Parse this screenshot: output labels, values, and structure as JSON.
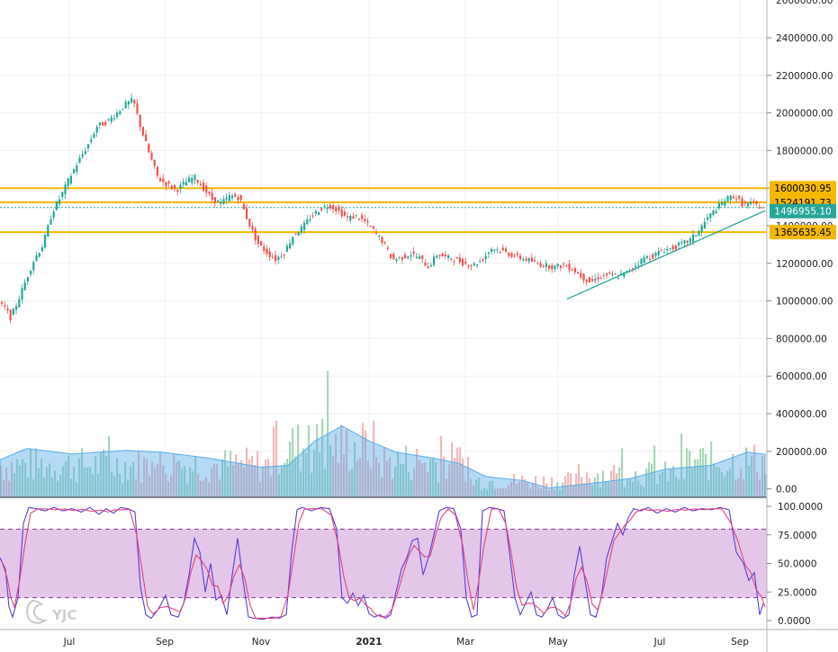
{
  "chart_data": [
    {
      "type": "candlestick",
      "name": "",
      "y_axis_ticks": [
        "2400000.00",
        "2200000.00",
        "2000000.00",
        "1800000.00",
        "1600000.00",
        "1400000.00",
        "1200000.00",
        "1000000.00",
        "800000.00",
        "600000.00",
        "400000.00",
        "200000.00",
        "0.00"
      ],
      "y_axis_partial_top": "2600000.00",
      "ylim": [
        0,
        2650000
      ],
      "x_axis_ticks": [
        "Jul",
        "Sep",
        "Nov",
        "2021",
        "Mar",
        "May",
        "Jul",
        "Sep"
      ],
      "price_path_approx": [
        [
          0,
          990000
        ],
        [
          8,
          960000
        ],
        [
          14,
          910000
        ],
        [
          22,
          1000000
        ],
        [
          30,
          1100000
        ],
        [
          40,
          1220000
        ],
        [
          50,
          1300000
        ],
        [
          60,
          1470000
        ],
        [
          70,
          1560000
        ],
        [
          80,
          1660000
        ],
        [
          90,
          1750000
        ],
        [
          100,
          1830000
        ],
        [
          110,
          1930000
        ],
        [
          120,
          1950000
        ],
        [
          130,
          1990000
        ],
        [
          140,
          2040000
        ],
        [
          150,
          2070000
        ],
        [
          158,
          1930000
        ],
        [
          168,
          1780000
        ],
        [
          178,
          1650000
        ],
        [
          188,
          1620000
        ],
        [
          198,
          1590000
        ],
        [
          208,
          1630000
        ],
        [
          218,
          1660000
        ],
        [
          228,
          1600000
        ],
        [
          238,
          1540000
        ],
        [
          248,
          1520000
        ],
        [
          258,
          1560000
        ],
        [
          268,
          1550000
        ],
        [
          278,
          1420000
        ],
        [
          288,
          1310000
        ],
        [
          298,
          1260000
        ],
        [
          308,
          1220000
        ],
        [
          318,
          1260000
        ],
        [
          328,
          1350000
        ],
        [
          338,
          1390000
        ],
        [
          348,
          1450000
        ],
        [
          358,
          1490000
        ],
        [
          368,
          1510000
        ],
        [
          378,
          1480000
        ],
        [
          388,
          1440000
        ],
        [
          398,
          1450000
        ],
        [
          408,
          1420000
        ],
        [
          418,
          1370000
        ],
        [
          428,
          1310000
        ],
        [
          438,
          1220000
        ],
        [
          448,
          1230000
        ],
        [
          458,
          1250000
        ],
        [
          468,
          1230000
        ],
        [
          478,
          1180000
        ],
        [
          488,
          1250000
        ],
        [
          498,
          1230000
        ],
        [
          508,
          1220000
        ],
        [
          518,
          1200000
        ],
        [
          528,
          1190000
        ],
        [
          538,
          1220000
        ],
        [
          548,
          1280000
        ],
        [
          558,
          1270000
        ],
        [
          568,
          1250000
        ],
        [
          578,
          1230000
        ],
        [
          588,
          1220000
        ],
        [
          598,
          1200000
        ],
        [
          608,
          1190000
        ],
        [
          618,
          1180000
        ],
        [
          628,
          1190000
        ],
        [
          638,
          1170000
        ],
        [
          648,
          1130000
        ],
        [
          658,
          1100000
        ],
        [
          668,
          1130000
        ],
        [
          678,
          1140000
        ],
        [
          688,
          1130000
        ],
        [
          698,
          1150000
        ],
        [
          708,
          1190000
        ],
        [
          718,
          1230000
        ],
        [
          728,
          1240000
        ],
        [
          738,
          1270000
        ],
        [
          748,
          1280000
        ],
        [
          758,
          1300000
        ],
        [
          768,
          1320000
        ],
        [
          778,
          1370000
        ],
        [
          788,
          1440000
        ],
        [
          798,
          1490000
        ],
        [
          808,
          1540000
        ],
        [
          818,
          1560000
        ],
        [
          828,
          1510000
        ],
        [
          838,
          1520000
        ],
        [
          848,
          1497000
        ]
      ],
      "horizontal_levels": [
        {
          "value": 1600030.95,
          "label": "1600030.95",
          "color": "#f5b800"
        },
        {
          "value": 1524191.73,
          "label": "1524191.73",
          "color": "#f5b800"
        },
        {
          "value": 1365635.45,
          "label": "1365635.45",
          "color": "#f5b800"
        }
      ],
      "last_price": {
        "value": 1496955.1,
        "label": "1496955.10",
        "color": "#26a69a"
      },
      "trendline": {
        "from_date": "May",
        "from_value": 1010000,
        "to_date": "Sep",
        "to_value": 1480000,
        "color": "#26a69a"
      },
      "volume": {
        "up_color": "#a8d8b9",
        "down_color": "#f2b8b8",
        "ma_color": "#5aaee8"
      },
      "colors": {
        "up": "#26a69a",
        "down": "#ef5350"
      }
    },
    {
      "type": "line",
      "name": "stochastic",
      "y_axis_ticks": [
        "100.0000",
        "75.0000",
        "50.0000",
        "25.0000",
        "0.0000"
      ],
      "ylim": [
        -3,
        103
      ],
      "band": [
        20,
        80
      ],
      "band_color": "#d9b3e0",
      "series": [
        {
          "name": "",
          "color": "#5b3fd6"
        },
        {
          "name": "",
          "color": "#e0457b"
        }
      ],
      "k_path_approx": [
        [
          0,
          55
        ],
        [
          6,
          45
        ],
        [
          10,
          12
        ],
        [
          14,
          3
        ],
        [
          20,
          20
        ],
        [
          26,
          85
        ],
        [
          32,
          99
        ],
        [
          40,
          98
        ],
        [
          50,
          96
        ],
        [
          60,
          99
        ],
        [
          70,
          96
        ],
        [
          80,
          98
        ],
        [
          90,
          95
        ],
        [
          100,
          99
        ],
        [
          110,
          93
        ],
        [
          118,
          98
        ],
        [
          126,
          94
        ],
        [
          134,
          99
        ],
        [
          142,
          98
        ],
        [
          150,
          95
        ],
        [
          156,
          30
        ],
        [
          162,
          5
        ],
        [
          168,
          2
        ],
        [
          176,
          10
        ],
        [
          184,
          22
        ],
        [
          190,
          5
        ],
        [
          198,
          3
        ],
        [
          204,
          15
        ],
        [
          210,
          40
        ],
        [
          216,
          72
        ],
        [
          222,
          60
        ],
        [
          228,
          25
        ],
        [
          234,
          50
        ],
        [
          240,
          18
        ],
        [
          246,
          22
        ],
        [
          252,
          5
        ],
        [
          258,
          40
        ],
        [
          264,
          72
        ],
        [
          270,
          35
        ],
        [
          276,
          3
        ],
        [
          282,
          2
        ],
        [
          292,
          1
        ],
        [
          302,
          3
        ],
        [
          310,
          2
        ],
        [
          318,
          5
        ],
        [
          324,
          60
        ],
        [
          330,
          97
        ],
        [
          336,
          99
        ],
        [
          346,
          96
        ],
        [
          356,
          99
        ],
        [
          366,
          98
        ],
        [
          374,
          80
        ],
        [
          380,
          20
        ],
        [
          386,
          15
        ],
        [
          392,
          24
        ],
        [
          398,
          13
        ],
        [
          404,
          22
        ],
        [
          410,
          6
        ],
        [
          416,
          3
        ],
        [
          422,
          5
        ],
        [
          428,
          2
        ],
        [
          434,
          5
        ],
        [
          440,
          25
        ],
        [
          446,
          45
        ],
        [
          452,
          55
        ],
        [
          458,
          70
        ],
        [
          464,
          72
        ],
        [
          470,
          40
        ],
        [
          476,
          55
        ],
        [
          482,
          75
        ],
        [
          488,
          96
        ],
        [
          496,
          99
        ],
        [
          504,
          98
        ],
        [
          512,
          80
        ],
        [
          518,
          20
        ],
        [
          524,
          3
        ],
        [
          530,
          5
        ],
        [
          536,
          96
        ],
        [
          544,
          99
        ],
        [
          552,
          98
        ],
        [
          560,
          96
        ],
        [
          566,
          60
        ],
        [
          572,
          20
        ],
        [
          578,
          5
        ],
        [
          584,
          15
        ],
        [
          590,
          25
        ],
        [
          596,
          5
        ],
        [
          602,
          3
        ],
        [
          608,
          10
        ],
        [
          614,
          20
        ],
        [
          620,
          5
        ],
        [
          626,
          2
        ],
        [
          632,
          5
        ],
        [
          638,
          40
        ],
        [
          644,
          65
        ],
        [
          650,
          35
        ],
        [
          656,
          5
        ],
        [
          662,
          3
        ],
        [
          668,
          20
        ],
        [
          674,
          55
        ],
        [
          680,
          70
        ],
        [
          686,
          85
        ],
        [
          692,
          75
        ],
        [
          698,
          90
        ],
        [
          704,
          98
        ],
        [
          712,
          96
        ],
        [
          720,
          99
        ],
        [
          730,
          94
        ],
        [
          740,
          98
        ],
        [
          750,
          95
        ],
        [
          760,
          99
        ],
        [
          770,
          96
        ],
        [
          780,
          98
        ],
        [
          790,
          97
        ],
        [
          800,
          99
        ],
        [
          810,
          97
        ],
        [
          818,
          60
        ],
        [
          826,
          50
        ],
        [
          832,
          35
        ],
        [
          838,
          42
        ],
        [
          844,
          5
        ],
        [
          848,
          15
        ]
      ]
    }
  ],
  "watermark": "YJC"
}
